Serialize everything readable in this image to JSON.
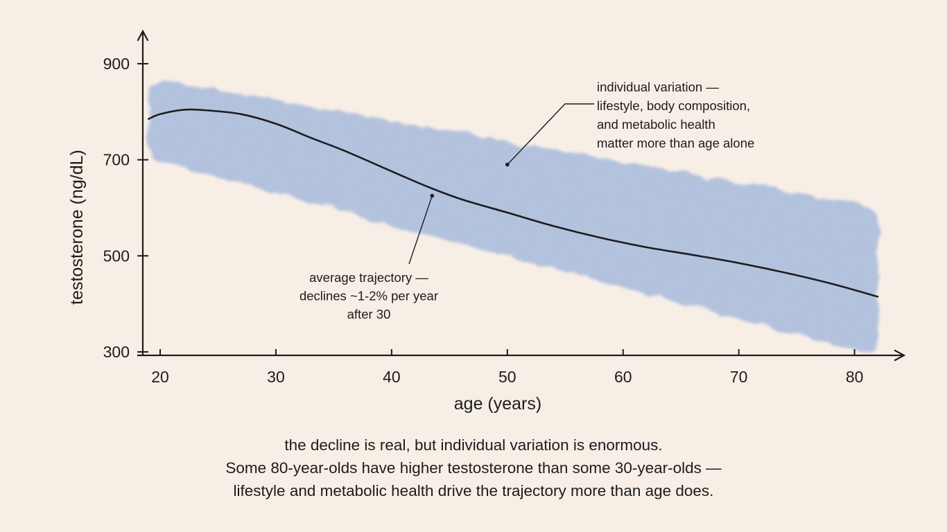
{
  "chart_data": {
    "type": "line",
    "xlabel": "age (years)",
    "ylabel": "testosterone (ng/dL)",
    "xlim": [
      18.5,
      82
    ],
    "ylim": [
      300,
      900
    ],
    "x_ticks": [
      20,
      30,
      40,
      50,
      60,
      70,
      80
    ],
    "y_ticks": [
      300,
      500,
      700,
      900
    ],
    "grid": false,
    "colors": {
      "band": "#7c9bd4",
      "line": "#1c1c1c",
      "axis": "#1c1c1c",
      "background": "#f7efe6"
    },
    "series": [
      {
        "x": [
          19,
          20,
          22,
          24,
          27,
          30,
          33,
          36,
          40,
          43,
          46,
          50,
          54,
          58,
          62,
          66,
          70,
          74,
          78,
          82
        ],
        "y": [
          785,
          795,
          804,
          803,
          795,
          775,
          746,
          718,
          676,
          645,
          618,
          590,
          562,
          538,
          518,
          502,
          485,
          465,
          442,
          415
        ]
      }
    ],
    "band": {
      "x": [
        19,
        82
      ],
      "upper": [
        860,
        605
      ],
      "lower": [
        700,
        300
      ]
    },
    "annotations": [
      {
        "id": "variation",
        "lines": [
          "individual variation —",
          "lifestyle, body composition,",
          "and metabolic health",
          "matter more than age alone"
        ],
        "point": [
          50,
          690
        ]
      },
      {
        "id": "average",
        "lines": [
          "average trajectory —",
          "declines ~1-2% per year",
          "after 30"
        ],
        "point": [
          43.5,
          625
        ]
      }
    ]
  },
  "caption": {
    "lines": [
      "the decline is real, but individual variation is enormous.",
      "Some 80-year-olds have higher testosterone than some 30-year-olds —",
      "lifestyle and metabolic health drive the trajectory more than age does."
    ]
  }
}
